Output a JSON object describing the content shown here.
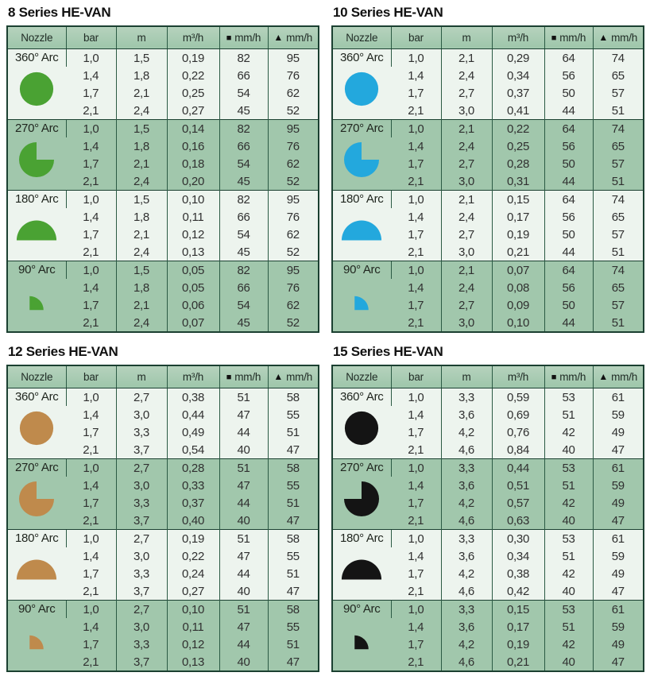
{
  "columns": {
    "nozzle": "Nozzle",
    "bar": "bar",
    "m": "m",
    "m3h": "m³/h",
    "mmh": "mm/h"
  },
  "glyphs": {
    "square": "■",
    "triangle": "▲"
  },
  "colors": {
    "header_bg": "#a6c9af",
    "light_row_bg": "#edf4ee",
    "medium_row_bg": "#a1c7ac",
    "outer_border": "#1b4031",
    "grid_line": "#2b5a44",
    "text": "#303030",
    "series_8_icon": "#4aa233",
    "series_10_icon": "#23a8dd",
    "series_12_icon": "#bf8a4c",
    "series_15_icon": "#141414"
  },
  "tables": [
    {
      "title": "8 Series HE-VAN",
      "icon_color": "#4aa233",
      "pie_notch": "right",
      "groups": [
        {
          "arc": "360° Arc",
          "icon": "arc-360",
          "rows": [
            [
              "1,0",
              "1,5",
              "0,19",
              "82",
              "95"
            ],
            [
              "1,4",
              "1,8",
              "0,22",
              "66",
              "76"
            ],
            [
              "1,7",
              "2,1",
              "0,25",
              "54",
              "62"
            ],
            [
              "2,1",
              "2,4",
              "0,27",
              "45",
              "52"
            ]
          ]
        },
        {
          "arc": "270° Arc",
          "icon": "arc-270",
          "rows": [
            [
              "1,0",
              "1,5",
              "0,14",
              "82",
              "95"
            ],
            [
              "1,4",
              "1,8",
              "0,16",
              "66",
              "76"
            ],
            [
              "1,7",
              "2,1",
              "0,18",
              "54",
              "62"
            ],
            [
              "2,1",
              "2,4",
              "0,20",
              "45",
              "52"
            ]
          ]
        },
        {
          "arc": "180° Arc",
          "icon": "arc-180",
          "rows": [
            [
              "1,0",
              "1,5",
              "0,10",
              "82",
              "95"
            ],
            [
              "1,4",
              "1,8",
              "0,11",
              "66",
              "76"
            ],
            [
              "1,7",
              "2,1",
              "0,12",
              "54",
              "62"
            ],
            [
              "2,1",
              "2,4",
              "0,13",
              "45",
              "52"
            ]
          ]
        },
        {
          "arc": "90° Arc",
          "icon": "arc-90",
          "rows": [
            [
              "1,0",
              "1,5",
              "0,05",
              "82",
              "95"
            ],
            [
              "1,4",
              "1,8",
              "0,05",
              "66",
              "76"
            ],
            [
              "1,7",
              "2,1",
              "0,06",
              "54",
              "62"
            ],
            [
              "2,1",
              "2,4",
              "0,07",
              "45",
              "52"
            ]
          ]
        }
      ]
    },
    {
      "title": "10 Series HE-VAN",
      "icon_color": "#23a8dd",
      "pie_notch": "right",
      "groups": [
        {
          "arc": "360° Arc",
          "icon": "arc-360",
          "rows": [
            [
              "1,0",
              "2,1",
              "0,29",
              "64",
              "74"
            ],
            [
              "1,4",
              "2,4",
              "0,34",
              "56",
              "65"
            ],
            [
              "1,7",
              "2,7",
              "0,37",
              "50",
              "57"
            ],
            [
              "2,1",
              "3,0",
              "0,41",
              "44",
              "51"
            ]
          ]
        },
        {
          "arc": "270° Arc",
          "icon": "arc-270",
          "rows": [
            [
              "1,0",
              "2,1",
              "0,22",
              "64",
              "74"
            ],
            [
              "1,4",
              "2,4",
              "0,25",
              "56",
              "65"
            ],
            [
              "1,7",
              "2,7",
              "0,28",
              "50",
              "57"
            ],
            [
              "2,1",
              "3,0",
              "0,31",
              "44",
              "51"
            ]
          ]
        },
        {
          "arc": "180° Arc",
          "icon": "arc-180",
          "rows": [
            [
              "1,0",
              "2,1",
              "0,15",
              "64",
              "74"
            ],
            [
              "1,4",
              "2,4",
              "0,17",
              "56",
              "65"
            ],
            [
              "1,7",
              "2,7",
              "0,19",
              "50",
              "57"
            ],
            [
              "2,1",
              "3,0",
              "0,21",
              "44",
              "51"
            ]
          ]
        },
        {
          "arc": "90° Arc",
          "icon": "arc-90",
          "rows": [
            [
              "1,0",
              "2,1",
              "0,07",
              "64",
              "74"
            ],
            [
              "1,4",
              "2,4",
              "0,08",
              "56",
              "65"
            ],
            [
              "1,7",
              "2,7",
              "0,09",
              "50",
              "57"
            ],
            [
              "2,1",
              "3,0",
              "0,10",
              "44",
              "51"
            ]
          ]
        }
      ]
    },
    {
      "title": "12 Series HE-VAN",
      "icon_color": "#bf8a4c",
      "pie_notch": "right",
      "groups": [
        {
          "arc": "360° Arc",
          "icon": "arc-360",
          "rows": [
            [
              "1,0",
              "2,7",
              "0,38",
              "51",
              "58"
            ],
            [
              "1,4",
              "3,0",
              "0,44",
              "47",
              "55"
            ],
            [
              "1,7",
              "3,3",
              "0,49",
              "44",
              "51"
            ],
            [
              "2,1",
              "3,7",
              "0,54",
              "40",
              "47"
            ]
          ]
        },
        {
          "arc": "270° Arc",
          "icon": "arc-270",
          "rows": [
            [
              "1,0",
              "2,7",
              "0,28",
              "51",
              "58"
            ],
            [
              "1,4",
              "3,0",
              "0,33",
              "47",
              "55"
            ],
            [
              "1,7",
              "3,3",
              "0,37",
              "44",
              "51"
            ],
            [
              "2,1",
              "3,7",
              "0,40",
              "40",
              "47"
            ]
          ]
        },
        {
          "arc": "180° Arc",
          "icon": "arc-180",
          "rows": [
            [
              "1,0",
              "2,7",
              "0,19",
              "51",
              "58"
            ],
            [
              "1,4",
              "3,0",
              "0,22",
              "47",
              "55"
            ],
            [
              "1,7",
              "3,3",
              "0,24",
              "44",
              "51"
            ],
            [
              "2,1",
              "3,7",
              "0,27",
              "40",
              "47"
            ]
          ]
        },
        {
          "arc": "90° Arc",
          "icon": "arc-90",
          "rows": [
            [
              "1,0",
              "2,7",
              "0,10",
              "51",
              "58"
            ],
            [
              "1,4",
              "3,0",
              "0,11",
              "47",
              "55"
            ],
            [
              "1,7",
              "3,3",
              "0,12",
              "44",
              "51"
            ],
            [
              "2,1",
              "3,7",
              "0,13",
              "40",
              "47"
            ]
          ]
        }
      ]
    },
    {
      "title": "15 Series HE-VAN",
      "icon_color": "#141414",
      "pie_notch": "left",
      "groups": [
        {
          "arc": "360° Arc",
          "icon": "arc-360",
          "rows": [
            [
              "1,0",
              "3,3",
              "0,59",
              "53",
              "61"
            ],
            [
              "1,4",
              "3,6",
              "0,69",
              "51",
              "59"
            ],
            [
              "1,7",
              "4,2",
              "0,76",
              "42",
              "49"
            ],
            [
              "2,1",
              "4,6",
              "0,84",
              "40",
              "47"
            ]
          ]
        },
        {
          "arc": "270° Arc",
          "icon": "arc-270",
          "rows": [
            [
              "1,0",
              "3,3",
              "0,44",
              "53",
              "61"
            ],
            [
              "1,4",
              "3,6",
              "0,51",
              "51",
              "59"
            ],
            [
              "1,7",
              "4,2",
              "0,57",
              "42",
              "49"
            ],
            [
              "2,1",
              "4,6",
              "0,63",
              "40",
              "47"
            ]
          ]
        },
        {
          "arc": "180° Arc",
          "icon": "arc-180",
          "rows": [
            [
              "1,0",
              "3,3",
              "0,30",
              "53",
              "61"
            ],
            [
              "1,4",
              "3,6",
              "0,34",
              "51",
              "59"
            ],
            [
              "1,7",
              "4,2",
              "0,38",
              "42",
              "49"
            ],
            [
              "2,1",
              "4,6",
              "0,42",
              "40",
              "47"
            ]
          ]
        },
        {
          "arc": "90° Arc",
          "icon": "arc-90",
          "rows": [
            [
              "1,0",
              "3,3",
              "0,15",
              "53",
              "61"
            ],
            [
              "1,4",
              "3,6",
              "0,17",
              "51",
              "59"
            ],
            [
              "1,7",
              "4,2",
              "0,19",
              "42",
              "49"
            ],
            [
              "2,1",
              "4,6",
              "0,21",
              "40",
              "47"
            ]
          ]
        }
      ]
    }
  ]
}
